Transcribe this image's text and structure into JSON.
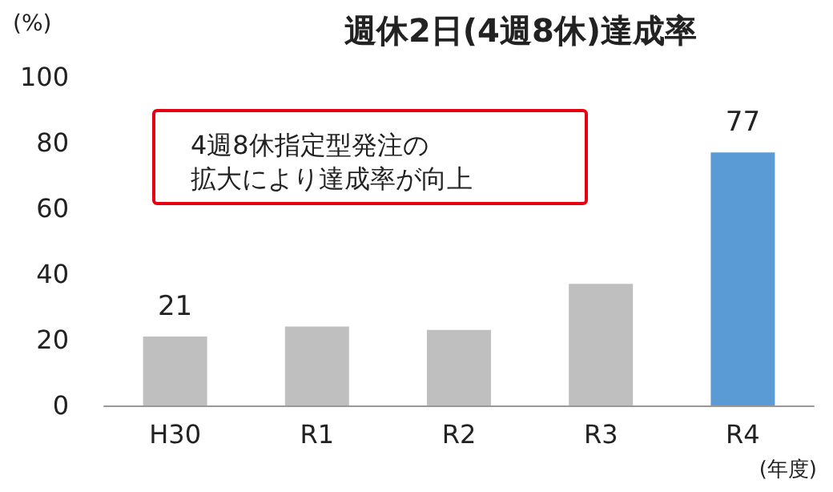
{
  "chart_data": {
    "type": "bar",
    "title": "週休2日(4週8休)達成率",
    "ylabel": "(%)",
    "xlabel": "(年度)",
    "categories": [
      "H30",
      "R1",
      "R2",
      "R3",
      "R4"
    ],
    "values": [
      21,
      24,
      23,
      37,
      77
    ],
    "colors": [
      "#bfbfbf",
      "#bfbfbf",
      "#bfbfbf",
      "#bfbfbf",
      "#5b9bd5"
    ],
    "value_labels": [
      "21",
      null,
      null,
      null,
      "77"
    ],
    "ylim": [
      0,
      100
    ],
    "yticks": [
      0,
      20,
      40,
      60,
      80,
      100
    ],
    "grid": false,
    "annotations": [
      "4週8休指定型発注の拡大により達成率が向上"
    ]
  }
}
